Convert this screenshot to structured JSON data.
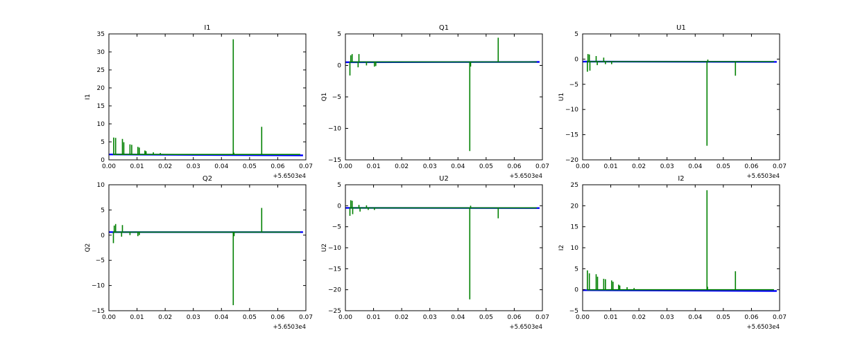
{
  "chart_data": [
    {
      "type": "line",
      "title": "I1",
      "xlabel": "",
      "ylabel": "I1",
      "xlim": [
        0.0,
        0.07
      ],
      "ylim": [
        0,
        35
      ],
      "xticks": [
        "0.00",
        "0.01",
        "0.02",
        "0.03",
        "0.04",
        "0.05",
        "0.06",
        "0.07"
      ],
      "yticks": [
        "0",
        "5",
        "10",
        "15",
        "20",
        "25",
        "30",
        "35"
      ],
      "x_offset": "+5.6503e4",
      "grid": false,
      "series": [
        {
          "color": "#0000ff",
          "x": [
            0.0,
            0.069
          ],
          "y": [
            1.5,
            1.25
          ]
        },
        {
          "color": "#008000",
          "baseline": 1.5,
          "x_start": 0.0015,
          "x_end": 0.068,
          "spikes": [
            [
              0.0017,
              6.2
            ],
            [
              0.0024,
              6.1
            ],
            [
              0.0048,
              5.8
            ],
            [
              0.0053,
              4.9
            ],
            [
              0.0075,
              4.3
            ],
            [
              0.0081,
              4.2
            ],
            [
              0.0103,
              3.6
            ],
            [
              0.0108,
              3.4
            ],
            [
              0.0128,
              2.6
            ],
            [
              0.0132,
              2.4
            ],
            [
              0.0158,
              2.1
            ],
            [
              0.0183,
              1.9
            ],
            [
              0.0442,
              33.5
            ],
            [
              0.0444,
              2.0
            ],
            [
              0.0543,
              9.2
            ]
          ]
        }
      ]
    },
    {
      "type": "line",
      "title": "Q1",
      "xlabel": "",
      "ylabel": "Q1",
      "xlim": [
        0.0,
        0.07
      ],
      "ylim": [
        -15,
        5
      ],
      "xticks": [
        "0.00",
        "0.01",
        "0.02",
        "0.03",
        "0.04",
        "0.05",
        "0.06",
        "0.07"
      ],
      "yticks": [
        "−15",
        "−10",
        "−5",
        "0",
        "5"
      ],
      "x_offset": "+5.6503e4",
      "grid": false,
      "series": [
        {
          "color": "#0000ff",
          "x": [
            0.0,
            0.069
          ],
          "y": [
            0.5,
            0.55
          ]
        },
        {
          "color": "#008000",
          "baseline": 0.55,
          "x_start": 0.0015,
          "x_end": 0.068,
          "spikes": [
            [
              0.0016,
              -1.6
            ],
            [
              0.0019,
              1.6
            ],
            [
              0.0024,
              1.8
            ],
            [
              0.0045,
              -0.3
            ],
            [
              0.0048,
              1.8
            ],
            [
              0.0075,
              0.0
            ],
            [
              0.0103,
              -0.2
            ],
            [
              0.0108,
              -0.1
            ],
            [
              0.0442,
              -13.6
            ],
            [
              0.0445,
              -0.2
            ],
            [
              0.0543,
              4.4
            ]
          ]
        }
      ]
    },
    {
      "type": "line",
      "title": "U1",
      "xlabel": "",
      "ylabel": "U1",
      "xlim": [
        0.0,
        0.07
      ],
      "ylim": [
        -20,
        5
      ],
      "xticks": [
        "0.00",
        "0.01",
        "0.02",
        "0.03",
        "0.04",
        "0.05",
        "0.06",
        "0.07"
      ],
      "yticks": [
        "−20",
        "−15",
        "−10",
        "−5",
        "0",
        "5"
      ],
      "x_offset": "+5.6503e4",
      "grid": false,
      "series": [
        {
          "color": "#0000ff",
          "x": [
            0.0,
            0.069
          ],
          "y": [
            -0.5,
            -0.55
          ]
        },
        {
          "color": "#008000",
          "baseline": -0.5,
          "x_start": 0.0015,
          "x_end": 0.068,
          "spikes": [
            [
              0.0017,
              -2.5
            ],
            [
              0.0019,
              1.0
            ],
            [
              0.0024,
              0.9
            ],
            [
              0.0026,
              -2.3
            ],
            [
              0.0048,
              0.6
            ],
            [
              0.0052,
              -1.2
            ],
            [
              0.0075,
              0.3
            ],
            [
              0.0081,
              -1.0
            ],
            [
              0.0103,
              -1.0
            ],
            [
              0.0442,
              -17.2
            ],
            [
              0.0445,
              -0.1
            ],
            [
              0.0543,
              -3.3
            ]
          ]
        }
      ]
    },
    {
      "type": "line",
      "title": "Q2",
      "xlabel": "",
      "ylabel": "Q2",
      "xlim": [
        0.0,
        0.07
      ],
      "ylim": [
        -15,
        10
      ],
      "xticks": [
        "0.00",
        "0.01",
        "0.02",
        "0.03",
        "0.04",
        "0.05",
        "0.06",
        "0.07"
      ],
      "yticks": [
        "−15",
        "−10",
        "−5",
        "0",
        "5",
        "10"
      ],
      "x_offset": "+5.6503e4",
      "grid": false,
      "series": [
        {
          "color": "#0000ff",
          "x": [
            0.0,
            0.069
          ],
          "y": [
            0.6,
            0.6
          ]
        },
        {
          "color": "#008000",
          "baseline": 0.6,
          "x_start": 0.0015,
          "x_end": 0.068,
          "spikes": [
            [
              0.0016,
              -1.6
            ],
            [
              0.0019,
              1.9
            ],
            [
              0.0024,
              2.2
            ],
            [
              0.0045,
              -0.3
            ],
            [
              0.0048,
              2.0
            ],
            [
              0.0075,
              0.0
            ],
            [
              0.0103,
              -0.2
            ],
            [
              0.0108,
              0.0
            ],
            [
              0.0442,
              -13.9
            ],
            [
              0.0445,
              -0.2
            ],
            [
              0.0543,
              5.4
            ]
          ]
        }
      ]
    },
    {
      "type": "line",
      "title": "U2",
      "xlabel": "",
      "ylabel": "U2",
      "xlim": [
        0.0,
        0.07
      ],
      "ylim": [
        -25,
        5
      ],
      "xticks": [
        "0.00",
        "0.01",
        "0.02",
        "0.03",
        "0.04",
        "0.05",
        "0.06",
        "0.07"
      ],
      "yticks": [
        "−25",
        "−20",
        "−15",
        "−10",
        "−5",
        "0",
        "5"
      ],
      "x_offset": "+5.6503e4",
      "grid": false,
      "series": [
        {
          "color": "#0000ff",
          "x": [
            0.0,
            0.069
          ],
          "y": [
            -0.5,
            -0.55
          ]
        },
        {
          "color": "#008000",
          "baseline": -0.5,
          "x_start": 0.0015,
          "x_end": 0.068,
          "spikes": [
            [
              0.0016,
              -2.4
            ],
            [
              0.0019,
              1.3
            ],
            [
              0.0024,
              1.2
            ],
            [
              0.0026,
              -2.0
            ],
            [
              0.0048,
              0.2
            ],
            [
              0.0052,
              -1.4
            ],
            [
              0.0075,
              0.1
            ],
            [
              0.0081,
              -1.0
            ],
            [
              0.0103,
              -1.0
            ],
            [
              0.0442,
              -22.3
            ],
            [
              0.0445,
              0.0
            ],
            [
              0.0543,
              -3.0
            ]
          ]
        }
      ]
    },
    {
      "type": "line",
      "title": "I2",
      "xlabel": "",
      "ylabel": "I2",
      "xlim": [
        0.0,
        0.07
      ],
      "ylim": [
        -5,
        25
      ],
      "xticks": [
        "0.00",
        "0.01",
        "0.02",
        "0.03",
        "0.04",
        "0.05",
        "0.06",
        "0.07"
      ],
      "yticks": [
        "−5",
        "0",
        "5",
        "10",
        "15",
        "20",
        "25"
      ],
      "x_offset": "+5.6503e4",
      "grid": false,
      "series": [
        {
          "color": "#0000ff",
          "x": [
            0.0,
            0.069
          ],
          "y": [
            -0.1,
            -0.3
          ]
        },
        {
          "color": "#008000",
          "baseline": 0.0,
          "x_start": 0.0015,
          "x_end": 0.068,
          "spikes": [
            [
              0.0017,
              4.6
            ],
            [
              0.0024,
              3.9
            ],
            [
              0.0048,
              3.7
            ],
            [
              0.0053,
              3.1
            ],
            [
              0.0075,
              2.6
            ],
            [
              0.0081,
              2.5
            ],
            [
              0.0103,
              2.2
            ],
            [
              0.0108,
              1.9
            ],
            [
              0.0128,
              1.2
            ],
            [
              0.0132,
              1.0
            ],
            [
              0.0158,
              0.6
            ],
            [
              0.0183,
              0.4
            ],
            [
              0.0442,
              23.7
            ],
            [
              0.0444,
              0.7
            ],
            [
              0.0543,
              4.4
            ]
          ]
        }
      ]
    }
  ]
}
